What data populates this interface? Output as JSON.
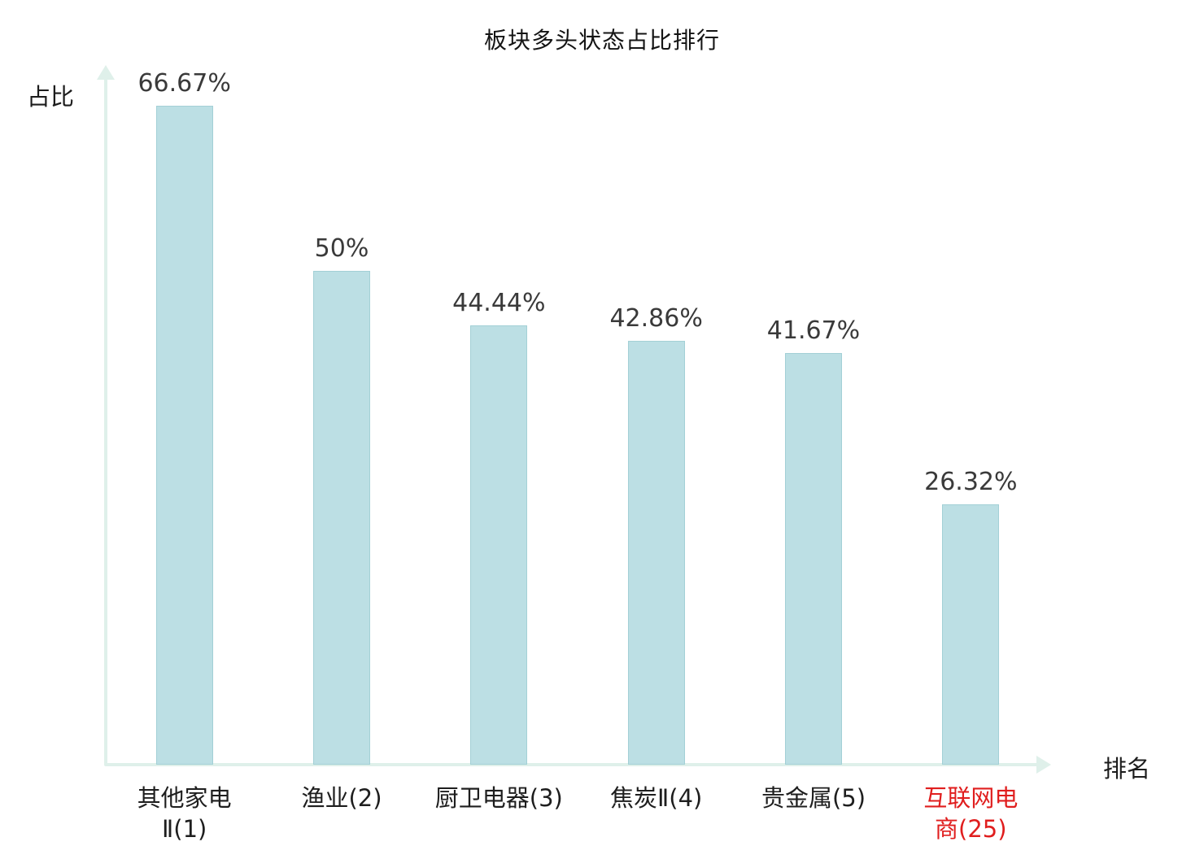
{
  "chart": {
    "title": "板块多头状态占比排行",
    "y_axis_label": "占比",
    "x_axis_label": "排名"
  },
  "chart_data": {
    "type": "bar",
    "title": "板块多头状态占比排行",
    "xlabel": "排名",
    "ylabel": "占比",
    "ylim": [
      0,
      66.67
    ],
    "grid": false,
    "legend": "none",
    "categories": [
      "其他家电Ⅱ(1)",
      "渔业(2)",
      "厨卫电器(3)",
      "焦炭Ⅱ(4)",
      "贵金属(5)",
      "互联网电商(25)"
    ],
    "category_lines": [
      [
        "其他家电",
        "Ⅱ(1)"
      ],
      [
        "渔业(2)"
      ],
      [
        "厨卫电器(3)"
      ],
      [
        "焦炭Ⅱ(4)"
      ],
      [
        "贵金属(5)"
      ],
      [
        "互联网电",
        "商(25)"
      ]
    ],
    "values": [
      66.67,
      50,
      44.44,
      42.86,
      41.67,
      26.32
    ],
    "value_labels": [
      "66.67%",
      "50%",
      "44.44%",
      "42.86%",
      "41.67%",
      "26.32%"
    ],
    "highlight_index": 5,
    "colors": {
      "bar_fill": "#bcdfe4",
      "bar_border": "#a3d0d6",
      "axis": "#dff0ea",
      "value_label": "#3a3a3a",
      "category_label": "#1e1e1e",
      "highlight_category_label": "#e01e1e",
      "title": "#141414"
    }
  }
}
